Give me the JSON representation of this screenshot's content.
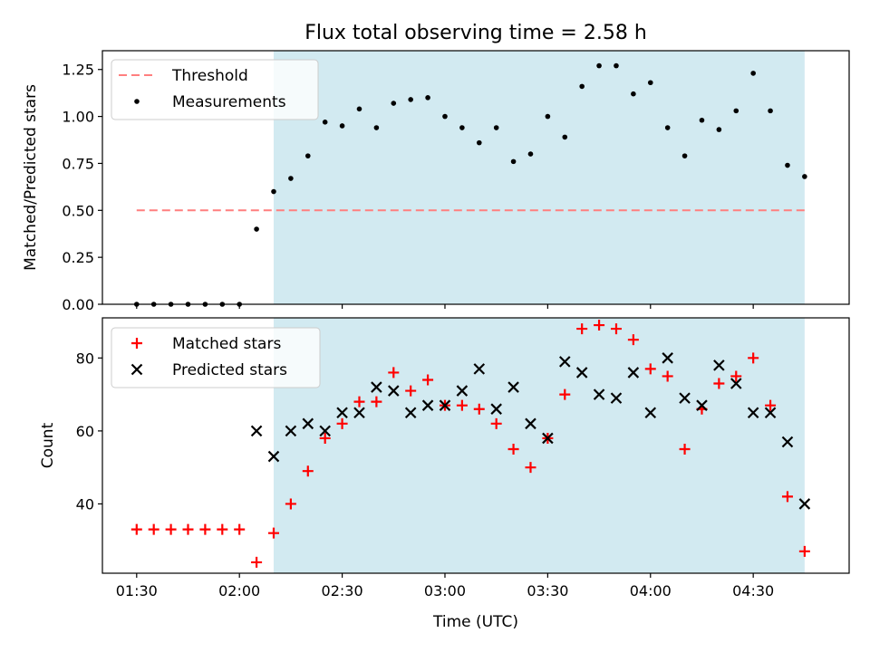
{
  "figure_title": "Flux total observing time = 2.58 h",
  "chart_data": [
    {
      "type": "scatter",
      "panel": "top",
      "xlabel": "",
      "ylabel": "Matched/Predicted stars",
      "xlim": [
        "01:20",
        "04:58"
      ],
      "ylim": [
        0,
        1.35
      ],
      "yticks": [
        0.0,
        0.25,
        0.5,
        0.75,
        1.0,
        1.25
      ],
      "ytick_labels": [
        "0.00",
        "0.25",
        "0.50",
        "0.75",
        "1.00",
        "1.25"
      ],
      "shaded_interval": {
        "start": "02:10",
        "end": "04:45",
        "color": "#add8e6"
      },
      "legend_position": "upper-left",
      "threshold": {
        "name": "Threshold",
        "value": 0.5,
        "start": "01:30",
        "end": "04:45",
        "color": "#ff7f7f",
        "style": "dashed"
      },
      "series": [
        {
          "name": "Measurements",
          "marker": "dot",
          "color": "#000000",
          "x": [
            "01:30",
            "01:35",
            "01:40",
            "01:45",
            "01:50",
            "01:55",
            "02:00",
            "02:05",
            "02:10",
            "02:15",
            "02:20",
            "02:25",
            "02:30",
            "02:35",
            "02:40",
            "02:45",
            "02:50",
            "02:55",
            "03:00",
            "03:05",
            "03:10",
            "03:15",
            "03:20",
            "03:25",
            "03:30",
            "03:35",
            "03:40",
            "03:45",
            "03:50",
            "03:55",
            "04:00",
            "04:05",
            "04:10",
            "04:15",
            "04:20",
            "04:25",
            "04:30",
            "04:35",
            "04:40",
            "04:45"
          ],
          "y": [
            0,
            0,
            0,
            0,
            0,
            0,
            0,
            0.4,
            0.6,
            0.67,
            0.79,
            0.97,
            0.95,
            1.04,
            0.94,
            1.07,
            1.09,
            1.1,
            1.0,
            0.94,
            0.86,
            0.94,
            0.76,
            0.8,
            1.0,
            0.89,
            1.16,
            1.27,
            1.27,
            1.12,
            1.18,
            0.94,
            0.79,
            0.98,
            0.93,
            1.03,
            1.23,
            1.03,
            0.74,
            0.68
          ]
        }
      ]
    },
    {
      "type": "scatter",
      "panel": "bottom",
      "xlabel": "Time (UTC)",
      "ylabel": "Count",
      "xlim": [
        "01:20",
        "04:58"
      ],
      "ylim": [
        21,
        91
      ],
      "xticks": [
        "01:30",
        "02:00",
        "02:30",
        "03:00",
        "03:30",
        "04:00",
        "04:30"
      ],
      "yticks": [
        40,
        60,
        80
      ],
      "ytick_labels": [
        "40",
        "60",
        "80"
      ],
      "shaded_interval": {
        "start": "02:10",
        "end": "04:45",
        "color": "#add8e6"
      },
      "legend_position": "upper-left",
      "series": [
        {
          "name": "Matched stars",
          "marker": "plus",
          "color": "#ff0000",
          "x": [
            "01:30",
            "01:35",
            "01:40",
            "01:45",
            "01:50",
            "01:55",
            "02:00",
            "02:05",
            "02:10",
            "02:15",
            "02:20",
            "02:25",
            "02:30",
            "02:35",
            "02:40",
            "02:45",
            "02:50",
            "02:55",
            "03:00",
            "03:05",
            "03:10",
            "03:15",
            "03:20",
            "03:25",
            "03:30",
            "03:35",
            "03:40",
            "03:45",
            "03:50",
            "03:55",
            "04:00",
            "04:05",
            "04:10",
            "04:15",
            "04:20",
            "04:25",
            "04:30",
            "04:35",
            "04:40",
            "04:45"
          ],
          "y": [
            33,
            33,
            33,
            33,
            33,
            33,
            33,
            24,
            32,
            40,
            49,
            58,
            62,
            68,
            68,
            76,
            71,
            74,
            67,
            67,
            66,
            62,
            55,
            50,
            58,
            70,
            88,
            89,
            88,
            85,
            77,
            75,
            55,
            66,
            73,
            75,
            80,
            67,
            42,
            27
          ]
        },
        {
          "name": "Predicted stars",
          "marker": "x",
          "color": "#000000",
          "x": [
            "02:05",
            "02:10",
            "02:15",
            "02:20",
            "02:25",
            "02:30",
            "02:35",
            "02:40",
            "02:45",
            "02:50",
            "02:55",
            "03:00",
            "03:05",
            "03:10",
            "03:15",
            "03:20",
            "03:25",
            "03:30",
            "03:35",
            "03:40",
            "03:45",
            "03:50",
            "03:55",
            "04:00",
            "04:05",
            "04:10",
            "04:15",
            "04:20",
            "04:25",
            "04:30",
            "04:35",
            "04:40",
            "04:45"
          ],
          "y": [
            60,
            53,
            60,
            62,
            60,
            65,
            65,
            72,
            71,
            65,
            67,
            67,
            71,
            77,
            66,
            72,
            62,
            58,
            79,
            76,
            70,
            69,
            76,
            65,
            80,
            69,
            67,
            78,
            73,
            65,
            65,
            57,
            40
          ]
        }
      ]
    }
  ]
}
